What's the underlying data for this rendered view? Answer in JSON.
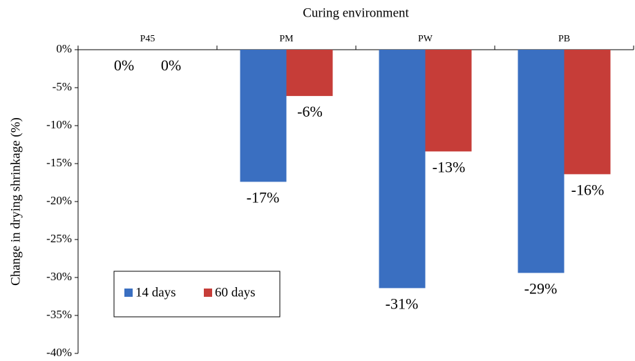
{
  "chart_data": {
    "type": "bar",
    "xlabel": "Curing environment",
    "ylabel": "Change in drying shrinkage (%)",
    "categories": [
      "P45",
      "PM",
      "PW",
      "PB"
    ],
    "series": [
      {
        "name": "14 days",
        "color": "#3a6fc1",
        "values": [
          0,
          -17.4,
          -31.4,
          -29.4
        ],
        "value_labels": [
          "0%",
          "-17%",
          "-31%",
          "-29%"
        ]
      },
      {
        "name": "60 days",
        "color": "#c63d38",
        "values": [
          0,
          -6.1,
          -13.4,
          -16.4
        ],
        "value_labels": [
          "0%",
          "-6%",
          "-13%",
          "-16%"
        ]
      }
    ],
    "ylim": [
      -40,
      0
    ],
    "yticks": [
      {
        "value": 0,
        "label": "0%"
      },
      {
        "value": -5,
        "label": "-5%"
      },
      {
        "value": -10,
        "label": "-10%"
      },
      {
        "value": -15,
        "label": "-15%"
      },
      {
        "value": -20,
        "label": "-20%"
      },
      {
        "value": -25,
        "label": "-25%"
      },
      {
        "value": -30,
        "label": "-30%"
      },
      {
        "value": -35,
        "label": "-35%"
      },
      {
        "value": -40,
        "label": "-40%"
      }
    ]
  }
}
